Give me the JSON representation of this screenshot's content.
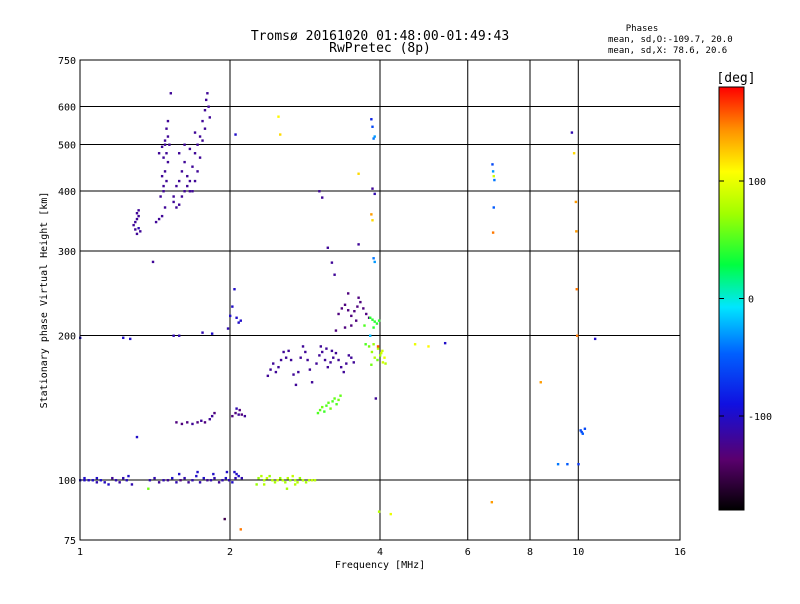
{
  "chart_data": {
    "type": "scatter",
    "title": "Tromsø 20161020 01:48:00-01:49:43",
    "subtitle": "RwPretec (8p)",
    "xlabel": "Frequency [MHz]",
    "ylabel": "Stationary phase Virtual Height [km]",
    "x_scale": "log",
    "y_scale": "log",
    "xlim": [
      1,
      16
    ],
    "ylim": [
      75,
      750
    ],
    "x_ticks": [
      1,
      2,
      4,
      6,
      8,
      10,
      16
    ],
    "y_ticks": [
      75,
      100,
      200,
      300,
      400,
      500,
      600,
      750
    ],
    "grid": true,
    "phase_box": {
      "title": "Phases",
      "line1": "mean, sd,O:-109.7, 20.0",
      "line2": "mean, sd,X:  78.6, 20.6"
    },
    "colorbar": {
      "label": "[deg]",
      "range": [
        -180,
        180
      ],
      "ticks": [
        100,
        0,
        -100
      ]
    },
    "points": [
      [
        1.0,
        100,
        -100
      ],
      [
        1.02,
        100,
        -100
      ],
      [
        1.04,
        100,
        -105
      ],
      [
        1.06,
        100,
        -100
      ],
      [
        1.08,
        99,
        -110
      ],
      [
        1.1,
        100,
        -100
      ],
      [
        1.12,
        99,
        -105
      ],
      [
        1.14,
        98,
        -100
      ],
      [
        1.16,
        101,
        -120
      ],
      [
        1.18,
        100,
        -110
      ],
      [
        1.2,
        99,
        -115
      ],
      [
        1.22,
        101,
        -110
      ],
      [
        1.24,
        100,
        -105
      ],
      [
        1.02,
        101,
        -100
      ],
      [
        1.08,
        101,
        -100
      ],
      [
        1.0,
        198,
        -100
      ],
      [
        1.22,
        198,
        -100
      ],
      [
        1.26,
        197,
        -100
      ],
      [
        1.3,
        123,
        -100
      ],
      [
        1.25,
        102,
        -100
      ],
      [
        1.27,
        98,
        -110
      ],
      [
        1.37,
        96,
        60
      ],
      [
        1.38,
        100,
        -110
      ],
      [
        1.41,
        101,
        -110
      ],
      [
        1.44,
        99,
        -120
      ],
      [
        1.47,
        100,
        -110
      ],
      [
        1.5,
        100,
        -120
      ],
      [
        1.53,
        101,
        -100
      ],
      [
        1.56,
        99,
        -110
      ],
      [
        1.59,
        100,
        -130
      ],
      [
        1.62,
        101,
        -110
      ],
      [
        1.65,
        99,
        -120
      ],
      [
        1.68,
        100,
        -110
      ],
      [
        1.71,
        102,
        -100
      ],
      [
        1.74,
        99,
        -110
      ],
      [
        1.77,
        101,
        -100
      ],
      [
        1.8,
        100,
        -120
      ],
      [
        1.83,
        100,
        -110
      ],
      [
        1.86,
        101,
        -110
      ],
      [
        1.9,
        99,
        -120
      ],
      [
        1.93,
        100,
        -110
      ],
      [
        1.96,
        101,
        -100
      ],
      [
        1.99,
        100,
        -110
      ],
      [
        2.02,
        99,
        -100
      ],
      [
        2.05,
        101,
        -110
      ],
      [
        2.08,
        102,
        -100
      ],
      [
        2.11,
        101,
        -110
      ],
      [
        1.58,
        103,
        -100
      ],
      [
        1.72,
        104,
        -100
      ],
      [
        1.85,
        103,
        -100
      ],
      [
        1.97,
        104,
        -100
      ],
      [
        2.04,
        104,
        -100
      ],
      [
        2.06,
        103,
        -100
      ],
      [
        1.28,
        340,
        -120
      ],
      [
        1.29,
        333,
        -120
      ],
      [
        1.3,
        326,
        -120
      ],
      [
        1.31,
        335,
        -110
      ],
      [
        1.3,
        350,
        -120
      ],
      [
        1.31,
        365,
        -120
      ],
      [
        1.3,
        360,
        -120
      ],
      [
        1.32,
        330,
        -120
      ],
      [
        1.29,
        345,
        -120
      ],
      [
        1.31,
        355,
        -120
      ],
      [
        1.45,
        390,
        -120
      ],
      [
        1.46,
        430,
        -120
      ],
      [
        1.47,
        470,
        -120
      ],
      [
        1.48,
        510,
        -120
      ],
      [
        1.49,
        540,
        -120
      ],
      [
        1.5,
        560,
        -120
      ],
      [
        1.5,
        520,
        -120
      ],
      [
        1.49,
        480,
        -120
      ],
      [
        1.48,
        440,
        -120
      ],
      [
        1.47,
        410,
        -120
      ],
      [
        1.49,
        420,
        -120
      ],
      [
        1.5,
        460,
        -120
      ],
      [
        1.51,
        500,
        -120
      ],
      [
        1.48,
        370,
        -120
      ],
      [
        1.46,
        355,
        -120
      ],
      [
        1.44,
        350,
        -120
      ],
      [
        1.42,
        345,
        -120
      ],
      [
        1.52,
        640,
        -120
      ],
      [
        1.4,
        285,
        -120
      ],
      [
        1.47,
        400,
        -120
      ],
      [
        1.54,
        380,
        -120
      ],
      [
        1.56,
        370,
        -120
      ],
      [
        1.58,
        375,
        -120
      ],
      [
        1.6,
        390,
        -120
      ],
      [
        1.62,
        400,
        -120
      ],
      [
        1.64,
        410,
        -120
      ],
      [
        1.66,
        420,
        -120
      ],
      [
        1.68,
        450,
        -120
      ],
      [
        1.7,
        480,
        -120
      ],
      [
        1.72,
        500,
        -120
      ],
      [
        1.74,
        520,
        -120
      ],
      [
        1.76,
        560,
        -120
      ],
      [
        1.78,
        590,
        -120
      ],
      [
        1.79,
        620,
        -120
      ],
      [
        1.8,
        640,
        -120
      ],
      [
        1.81,
        600,
        -120
      ],
      [
        1.82,
        570,
        -120
      ],
      [
        1.78,
        540,
        -120
      ],
      [
        1.76,
        510,
        -120
      ],
      [
        1.74,
        470,
        -120
      ],
      [
        1.72,
        440,
        -120
      ],
      [
        1.7,
        420,
        -120
      ],
      [
        1.68,
        400,
        -120
      ],
      [
        1.66,
        400,
        -120
      ],
      [
        1.64,
        430,
        -120
      ],
      [
        1.62,
        460,
        -120
      ],
      [
        1.6,
        440,
        -120
      ],
      [
        1.58,
        420,
        -120
      ],
      [
        1.56,
        410,
        -120
      ],
      [
        1.54,
        390,
        -120
      ],
      [
        1.62,
        500,
        -120
      ],
      [
        1.58,
        480,
        -120
      ],
      [
        1.66,
        490,
        -120
      ],
      [
        1.7,
        530,
        -120
      ],
      [
        1.54,
        200,
        -110
      ],
      [
        1.58,
        200,
        -110
      ],
      [
        1.76,
        203,
        -110
      ],
      [
        1.84,
        202,
        -100
      ],
      [
        1.98,
        207,
        -110
      ],
      [
        2.0,
        220,
        -100
      ],
      [
        2.02,
        230,
        -100
      ],
      [
        2.06,
        218,
        -100
      ],
      [
        2.08,
        213,
        -100
      ],
      [
        2.1,
        215,
        -100
      ],
      [
        2.04,
        250,
        -100
      ],
      [
        2.05,
        525,
        -100
      ],
      [
        1.56,
        132,
        -130
      ],
      [
        1.6,
        131,
        -130
      ],
      [
        1.64,
        132,
        -130
      ],
      [
        1.68,
        131,
        -120
      ],
      [
        1.72,
        132,
        -130
      ],
      [
        1.75,
        133,
        -120
      ],
      [
        1.78,
        132,
        -130
      ],
      [
        1.82,
        134,
        -120
      ],
      [
        1.84,
        136,
        -120
      ],
      [
        1.86,
        138,
        -130
      ],
      [
        2.02,
        136,
        -130
      ],
      [
        2.05,
        138,
        -130
      ],
      [
        2.08,
        137,
        -120
      ],
      [
        2.11,
        137,
        -130
      ],
      [
        2.14,
        136,
        -120
      ],
      [
        2.06,
        141,
        -110
      ],
      [
        2.09,
        140,
        -130
      ],
      [
        2.28,
        101,
        70
      ],
      [
        2.31,
        102,
        80
      ],
      [
        2.34,
        100,
        75
      ],
      [
        2.37,
        101,
        85
      ],
      [
        2.4,
        102,
        70
      ],
      [
        2.43,
        100,
        80
      ],
      [
        2.46,
        99,
        75
      ],
      [
        2.49,
        100,
        90
      ],
      [
        2.52,
        101,
        70
      ],
      [
        2.55,
        100,
        80
      ],
      [
        2.58,
        99,
        75
      ],
      [
        2.61,
        101,
        80
      ],
      [
        2.64,
        100,
        70
      ],
      [
        2.67,
        102,
        85
      ],
      [
        2.7,
        100,
        75
      ],
      [
        2.73,
        99,
        80
      ],
      [
        2.76,
        101,
        70
      ],
      [
        2.8,
        100,
        80
      ],
      [
        2.84,
        99,
        75
      ],
      [
        2.88,
        100,
        80
      ],
      [
        2.92,
        100,
        85
      ],
      [
        2.96,
        100,
        80
      ],
      [
        2.26,
        98,
        70
      ],
      [
        2.34,
        98,
        80
      ],
      [
        2.6,
        96,
        75
      ],
      [
        2.7,
        98,
        80
      ],
      [
        2.1,
        79,
        150
      ],
      [
        1.95,
        83,
        -150
      ],
      [
        2.38,
        165,
        -120
      ],
      [
        2.41,
        170,
        -120
      ],
      [
        2.44,
        175,
        -120
      ],
      [
        2.47,
        168,
        -120
      ],
      [
        2.5,
        172,
        -120
      ],
      [
        2.53,
        178,
        -120
      ],
      [
        2.56,
        185,
        -120
      ],
      [
        2.59,
        180,
        -120
      ],
      [
        2.62,
        186,
        -120
      ],
      [
        2.65,
        178,
        -120
      ],
      [
        2.68,
        166,
        -120
      ],
      [
        2.71,
        158,
        -120
      ],
      [
        2.74,
        168,
        -120
      ],
      [
        2.77,
        180,
        -120
      ],
      [
        2.8,
        190,
        -120
      ],
      [
        2.83,
        185,
        -120
      ],
      [
        2.86,
        178,
        -120
      ],
      [
        2.89,
        170,
        -120
      ],
      [
        2.92,
        160,
        -120
      ],
      [
        2.98,
        175,
        -120
      ],
      [
        3.02,
        182,
        -120
      ],
      [
        3.06,
        185,
        -120
      ],
      [
        3.1,
        178,
        -120
      ],
      [
        3.14,
        172,
        -120
      ],
      [
        3.18,
        176,
        -120
      ],
      [
        3.22,
        180,
        -120
      ],
      [
        3.26,
        184,
        -120
      ],
      [
        3.3,
        178,
        -120
      ],
      [
        3.34,
        172,
        -120
      ],
      [
        3.38,
        168,
        -120
      ],
      [
        3.42,
        175,
        -120
      ],
      [
        3.46,
        182,
        -120
      ],
      [
        3.5,
        180,
        -120
      ],
      [
        3.54,
        176,
        -120
      ],
      [
        3.04,
        190,
        -120
      ],
      [
        3.12,
        188,
        -120
      ],
      [
        3.2,
        186,
        -120
      ],
      [
        3.0,
        138,
        50
      ],
      [
        3.03,
        140,
        55
      ],
      [
        3.06,
        142,
        60
      ],
      [
        3.09,
        139,
        45
      ],
      [
        3.12,
        143,
        50
      ],
      [
        3.15,
        145,
        55
      ],
      [
        3.18,
        141,
        60
      ],
      [
        3.21,
        146,
        50
      ],
      [
        3.24,
        148,
        55
      ],
      [
        3.27,
        144,
        50
      ],
      [
        3.3,
        147,
        60
      ],
      [
        3.33,
        150,
        55
      ],
      [
        3.3,
        222,
        -130
      ],
      [
        3.35,
        228,
        -130
      ],
      [
        3.4,
        232,
        -130
      ],
      [
        3.45,
        226,
        -130
      ],
      [
        3.5,
        220,
        -130
      ],
      [
        3.55,
        225,
        -130
      ],
      [
        3.6,
        230,
        -130
      ],
      [
        3.65,
        235,
        -130
      ],
      [
        3.7,
        228,
        -130
      ],
      [
        3.75,
        222,
        -130
      ],
      [
        3.8,
        218,
        -130
      ],
      [
        3.62,
        240,
        -130
      ],
      [
        3.58,
        215,
        -130
      ],
      [
        3.5,
        210,
        -130
      ],
      [
        3.45,
        245,
        -130
      ],
      [
        3.4,
        208,
        -130
      ],
      [
        3.26,
        205,
        -130
      ],
      [
        3.82,
        218,
        40
      ],
      [
        3.86,
        216,
        40
      ],
      [
        3.9,
        214,
        40
      ],
      [
        3.94,
        212,
        40
      ],
      [
        3.98,
        215,
        40
      ],
      [
        3.72,
        210,
        50
      ],
      [
        3.88,
        208,
        40
      ],
      [
        3.8,
        190,
        60
      ],
      [
        3.85,
        185,
        70
      ],
      [
        3.9,
        180,
        80
      ],
      [
        3.95,
        178,
        60
      ],
      [
        4.0,
        182,
        70
      ],
      [
        4.05,
        176,
        90
      ],
      [
        3.88,
        192,
        70
      ],
      [
        3.96,
        188,
        80
      ],
      [
        4.02,
        184,
        90
      ],
      [
        4.08,
        180,
        100
      ],
      [
        3.84,
        174,
        60
      ],
      [
        3.74,
        192,
        50
      ],
      [
        4.1,
        175,
        80
      ],
      [
        4.04,
        186,
        90
      ],
      [
        3.02,
        400,
        -120
      ],
      [
        3.06,
        388,
        -120
      ],
      [
        3.14,
        305,
        -120
      ],
      [
        3.2,
        284,
        -120
      ],
      [
        3.24,
        268,
        -120
      ],
      [
        3.62,
        310,
        -120
      ],
      [
        3.62,
        435,
        120
      ],
      [
        3.84,
        565,
        -80
      ],
      [
        3.86,
        545,
        -60
      ],
      [
        3.88,
        515,
        -40
      ],
      [
        3.9,
        520,
        -30
      ],
      [
        3.86,
        405,
        -120
      ],
      [
        3.9,
        395,
        -110
      ],
      [
        3.84,
        358,
        140
      ],
      [
        3.86,
        348,
        120
      ],
      [
        3.88,
        290,
        -40
      ],
      [
        3.9,
        285,
        -30
      ],
      [
        3.82,
        200,
        -20
      ],
      [
        3.96,
        190,
        160
      ],
      [
        3.92,
        148,
        -120
      ],
      [
        2.5,
        572,
        110
      ],
      [
        2.52,
        525,
        120
      ],
      [
        1.48,
        500,
        -120
      ],
      [
        1.46,
        495,
        -120
      ],
      [
        1.44,
        480,
        -120
      ],
      [
        4.7,
        192,
        100
      ],
      [
        5.0,
        190,
        110
      ],
      [
        5.4,
        193,
        -100
      ],
      [
        4.2,
        85,
        100
      ],
      [
        3.98,
        86,
        80
      ],
      [
        6.72,
        455,
        -60
      ],
      [
        6.74,
        440,
        -30
      ],
      [
        6.76,
        430,
        90
      ],
      [
        6.78,
        422,
        -40
      ],
      [
        6.76,
        370,
        -50
      ],
      [
        6.74,
        328,
        150
      ],
      [
        6.7,
        90,
        140
      ],
      [
        8.4,
        160,
        140
      ],
      [
        9.1,
        108,
        -40
      ],
      [
        9.5,
        108,
        -50
      ],
      [
        9.7,
        530,
        -110
      ],
      [
        9.8,
        480,
        120
      ],
      [
        9.88,
        380,
        140
      ],
      [
        9.9,
        330,
        140
      ],
      [
        9.92,
        250,
        150
      ],
      [
        9.94,
        200,
        150
      ],
      [
        10.0,
        108,
        -70
      ],
      [
        10.1,
        127,
        -60
      ],
      [
        10.15,
        126,
        -60
      ],
      [
        10.2,
        125,
        -50
      ],
      [
        10.3,
        128,
        -60
      ],
      [
        10.8,
        197,
        -100
      ]
    ]
  }
}
